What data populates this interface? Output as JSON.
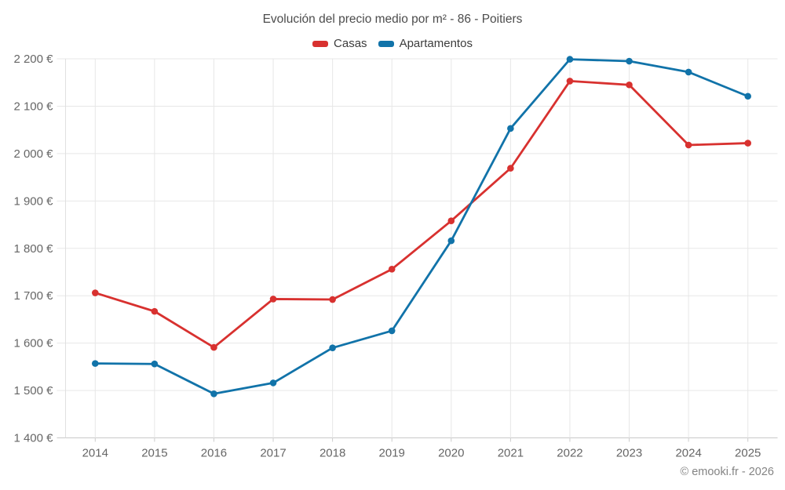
{
  "title": "Evolución del precio medio por m² - 86 - Poitiers",
  "legend": {
    "items": [
      {
        "label": "Casas",
        "color": "#d8312f"
      },
      {
        "label": "Apartamentos",
        "color": "#1173a9"
      }
    ]
  },
  "footer": "© emooki.fr - 2026",
  "colors": {
    "gridline": "#e7e7e7",
    "axis_baseline": "#c9c9c9",
    "plot_left_border": "#e0e0e0",
    "tick_mark": "#cccccc",
    "tick_text": "#666666",
    "title_text": "#4c4c4c",
    "legend_text": "#3c3c3c",
    "footer_text": "#848484"
  },
  "chart_data": {
    "type": "line",
    "title": "Evolución del precio medio por m² - 86 - Poitiers",
    "categories": [
      "2014",
      "2015",
      "2016",
      "2017",
      "2018",
      "2019",
      "2020",
      "2021",
      "2022",
      "2023",
      "2024",
      "2025"
    ],
    "series": [
      {
        "name": "Casas",
        "color": "#d8312f",
        "values": [
          1706,
          1667,
          1591,
          1693,
          1692,
          1756,
          1858,
          1969,
          2153,
          2145,
          2018,
          2022
        ]
      },
      {
        "name": "Apartamentos",
        "color": "#1173a9",
        "values": [
          1557,
          1556,
          1493,
          1516,
          1590,
          1626,
          1816,
          2053,
          2199,
          2195,
          2172,
          2121
        ]
      }
    ],
    "xlabel": "",
    "ylabel": "",
    "ylim": [
      1400,
      2200
    ],
    "ytick_step": 100,
    "ytick_suffix": " €",
    "thousands_separator": " ",
    "grid": true,
    "legend_position": "top",
    "marker": "circle"
  }
}
